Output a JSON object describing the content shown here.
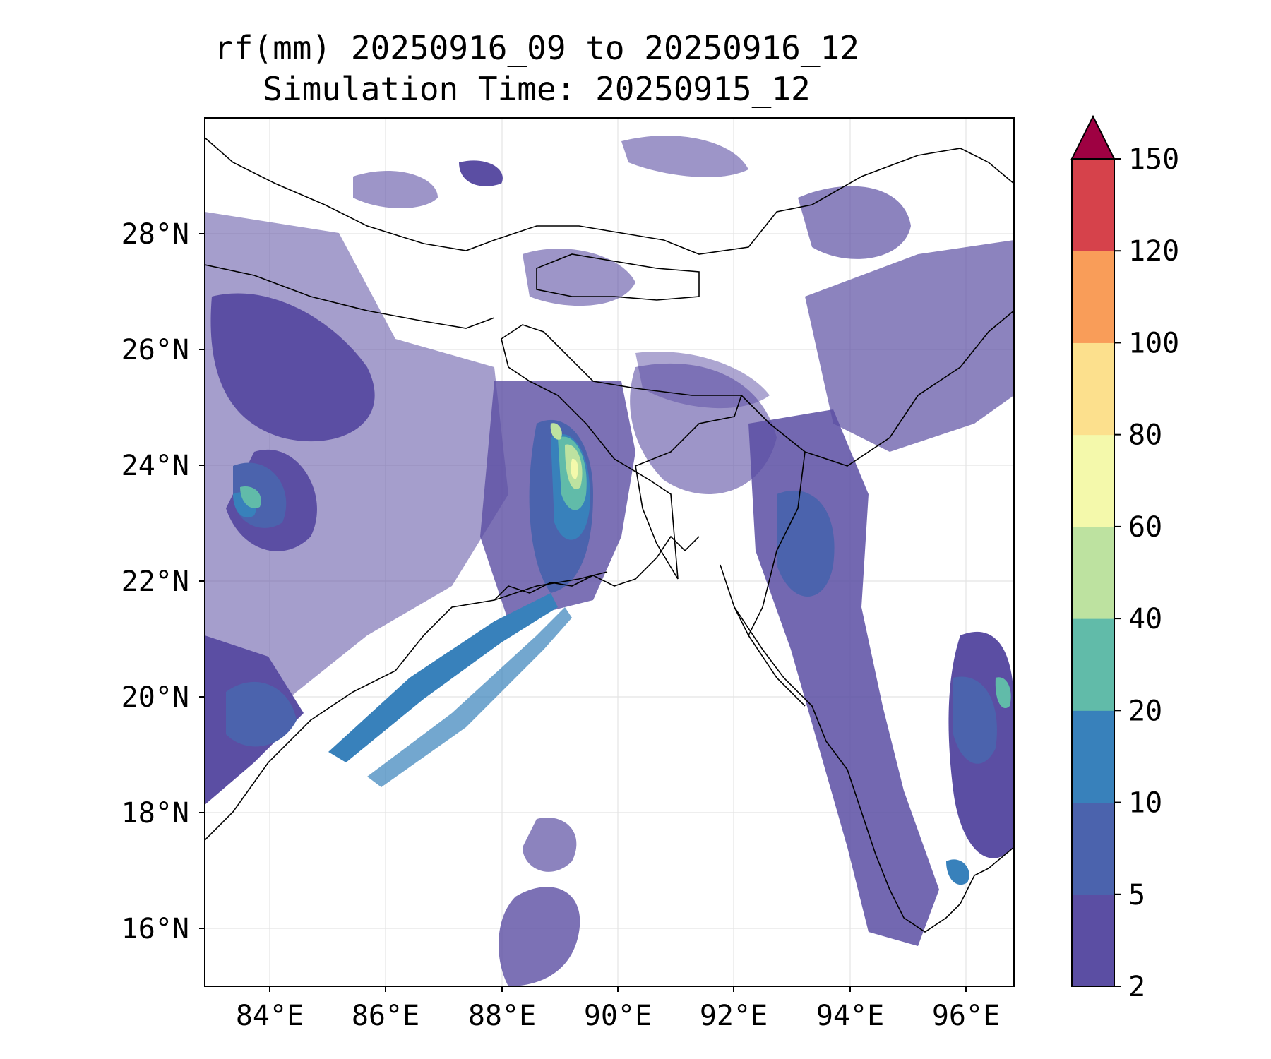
{
  "title": {
    "line1": "rf(mm) 20250916_09 to 20250916_12",
    "line2": "Simulation Time: 20250915_12"
  },
  "map": {
    "lon_range": [
      83.1,
      97.0
    ],
    "lat_range": [
      15.0,
      30.0
    ],
    "lon_ticks": [
      "84°E",
      "86°E",
      "88°E",
      "90°E",
      "92°E",
      "94°E",
      "96°E"
    ],
    "lat_ticks": [
      "16°N",
      "18°N",
      "20°N",
      "22°N",
      "24°N",
      "26°N",
      "28°N"
    ],
    "features": [
      "coastlines",
      "country borders",
      "gridlines"
    ]
  },
  "colorbar": {
    "levels": [
      "2",
      "5",
      "10",
      "20",
      "40",
      "60",
      "80",
      "100",
      "120",
      "150"
    ],
    "colors": [
      "#5b4ea3",
      "#4b63ad",
      "#3881bb",
      "#61bba9",
      "#bde2a0",
      "#f4f9ab",
      "#fce08d",
      "#f99d59",
      "#d6424b",
      "#9e0142"
    ],
    "extend": "max"
  }
}
